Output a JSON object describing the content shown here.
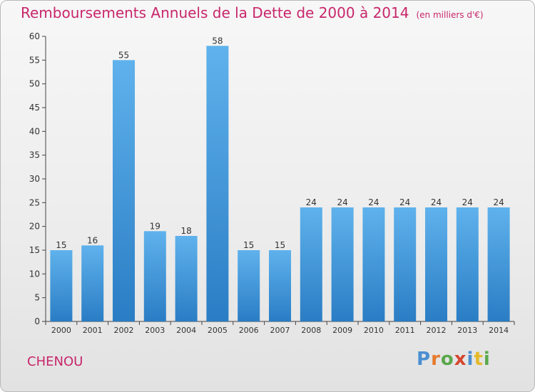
{
  "title": "Remboursements Annuels de la Dette de 2000 à 2014",
  "title_unit": "(en milliers d'€)",
  "commune": "CHENOU",
  "brand": "Proxiti",
  "colors": {
    "title": "#c8266b",
    "bar_top": "#5fb2ec",
    "bar_bottom": "#2a7dc4",
    "brand_letters": [
      "#4b8fd1",
      "#e47b2f",
      "#5aa84c",
      "#d5462f",
      "#4b8fd1",
      "#e5b92a",
      "#5aa84c"
    ]
  },
  "chart_data": {
    "type": "bar",
    "categories": [
      "2000",
      "2001",
      "2002",
      "2003",
      "2004",
      "2005",
      "2006",
      "2007",
      "2008",
      "2009",
      "2010",
      "2011",
      "2012",
      "2013",
      "2014"
    ],
    "values": [
      15,
      16,
      55,
      19,
      18,
      58,
      15,
      15,
      24,
      24,
      24,
      24,
      24,
      24,
      24
    ],
    "ylim": [
      0,
      60
    ],
    "yticks": [
      0,
      5,
      10,
      15,
      20,
      25,
      30,
      35,
      40,
      45,
      50,
      55,
      60
    ],
    "grid": false,
    "data_labels": true
  }
}
